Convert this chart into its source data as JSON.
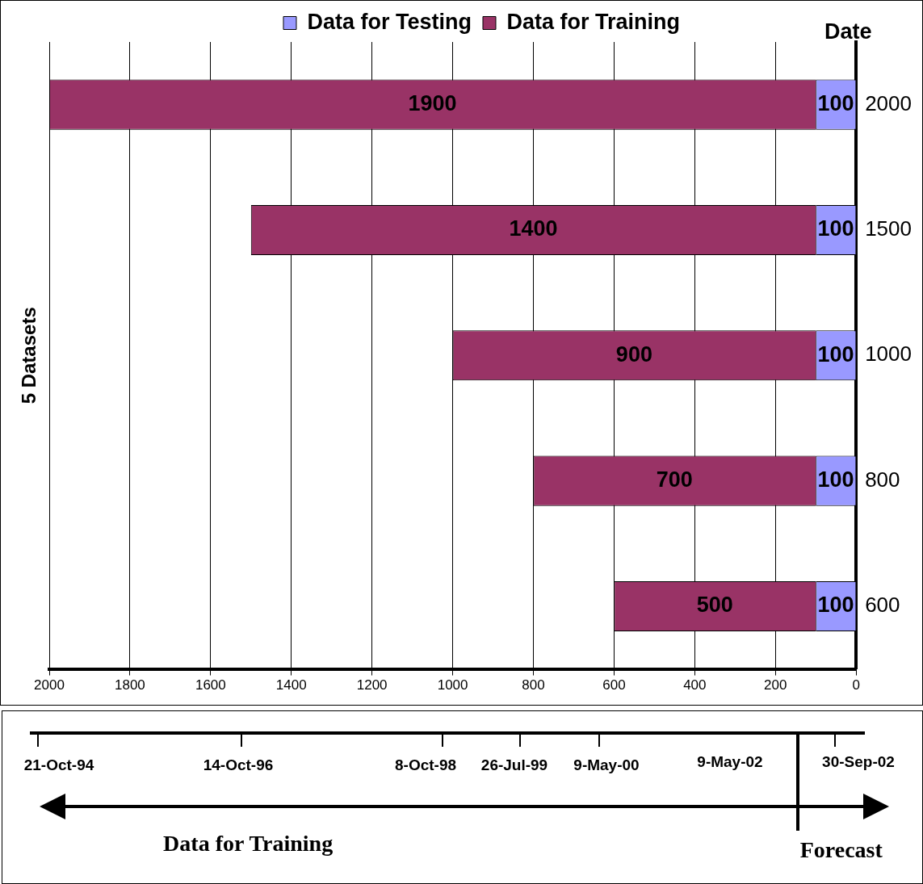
{
  "chart_data": [
    {
      "type": "bar",
      "orientation": "horizontal",
      "stacked": true,
      "ylabel": "5 Datasets",
      "annotations": [
        "Date"
      ],
      "categories": [
        "2000",
        "1500",
        "1000",
        "800",
        "600"
      ],
      "series": [
        {
          "name": "Data for Testing",
          "color": "#9999ff",
          "values": [
            100,
            100,
            100,
            100,
            100
          ]
        },
        {
          "name": "Data for Training",
          "color": "#993366",
          "values": [
            1900,
            1400,
            900,
            700,
            500
          ]
        }
      ],
      "xlim": [
        2000,
        0
      ],
      "xticks": [
        2000,
        1800,
        1600,
        1400,
        1200,
        1000,
        800,
        600,
        400,
        200,
        0
      ],
      "grid": "x",
      "legend": "top",
      "data_labels": true
    },
    {
      "type": "other",
      "annotations": [
        "21-Oct-94",
        "14-Oct-96",
        "8-Oct-98",
        "26-Jul-99",
        "9-May-00",
        "9-May-02",
        "30-Sep-02",
        "Data for Training",
        "Forecast"
      ]
    }
  ]
}
